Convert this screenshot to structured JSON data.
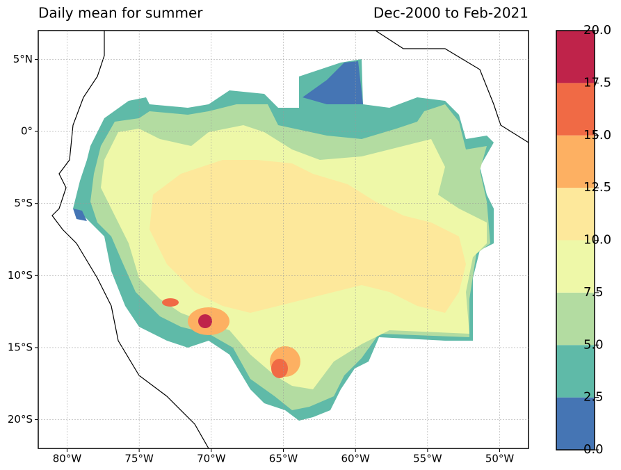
{
  "map": {
    "title_left": "Daily mean for summer",
    "title_right": "Dec-2000 to Feb-2021",
    "xlim": [
      -82,
      -48
    ],
    "ylim": [
      -22,
      7
    ],
    "xticks": [
      {
        "value": -80,
        "label": "80°W"
      },
      {
        "value": -75,
        "label": "75°W"
      },
      {
        "value": -70,
        "label": "70°W"
      },
      {
        "value": -65,
        "label": "65°W"
      },
      {
        "value": -60,
        "label": "60°W"
      },
      {
        "value": -55,
        "label": "55°W"
      },
      {
        "value": -50,
        "label": "50°W"
      }
    ],
    "yticks": [
      {
        "value": 5,
        "label": "5°N"
      },
      {
        "value": 0,
        "label": "0°"
      },
      {
        "value": -5,
        "label": "5°S"
      },
      {
        "value": -10,
        "label": "10°S"
      },
      {
        "value": -15,
        "label": "15°S"
      },
      {
        "value": -20,
        "label": "20°S"
      }
    ],
    "grid": true
  },
  "colorbar": {
    "ticks": [
      {
        "value": 0,
        "label": "0.0"
      },
      2.5,
      {
        "value": 5,
        "label": "5.0"
      },
      7.5,
      {
        "value": 10,
        "label": "10.0"
      },
      12.5,
      {
        "value": 15,
        "label": "15.0"
      },
      17.5,
      {
        "value": 20,
        "label": "20.0"
      }
    ],
    "colors": [
      "#4575b4",
      "#5fbaa8",
      "#b3dca1",
      "#eef8a8",
      "#fde89b",
      "#fdb062",
      "#f06a45",
      "#bf234a"
    ]
  }
}
